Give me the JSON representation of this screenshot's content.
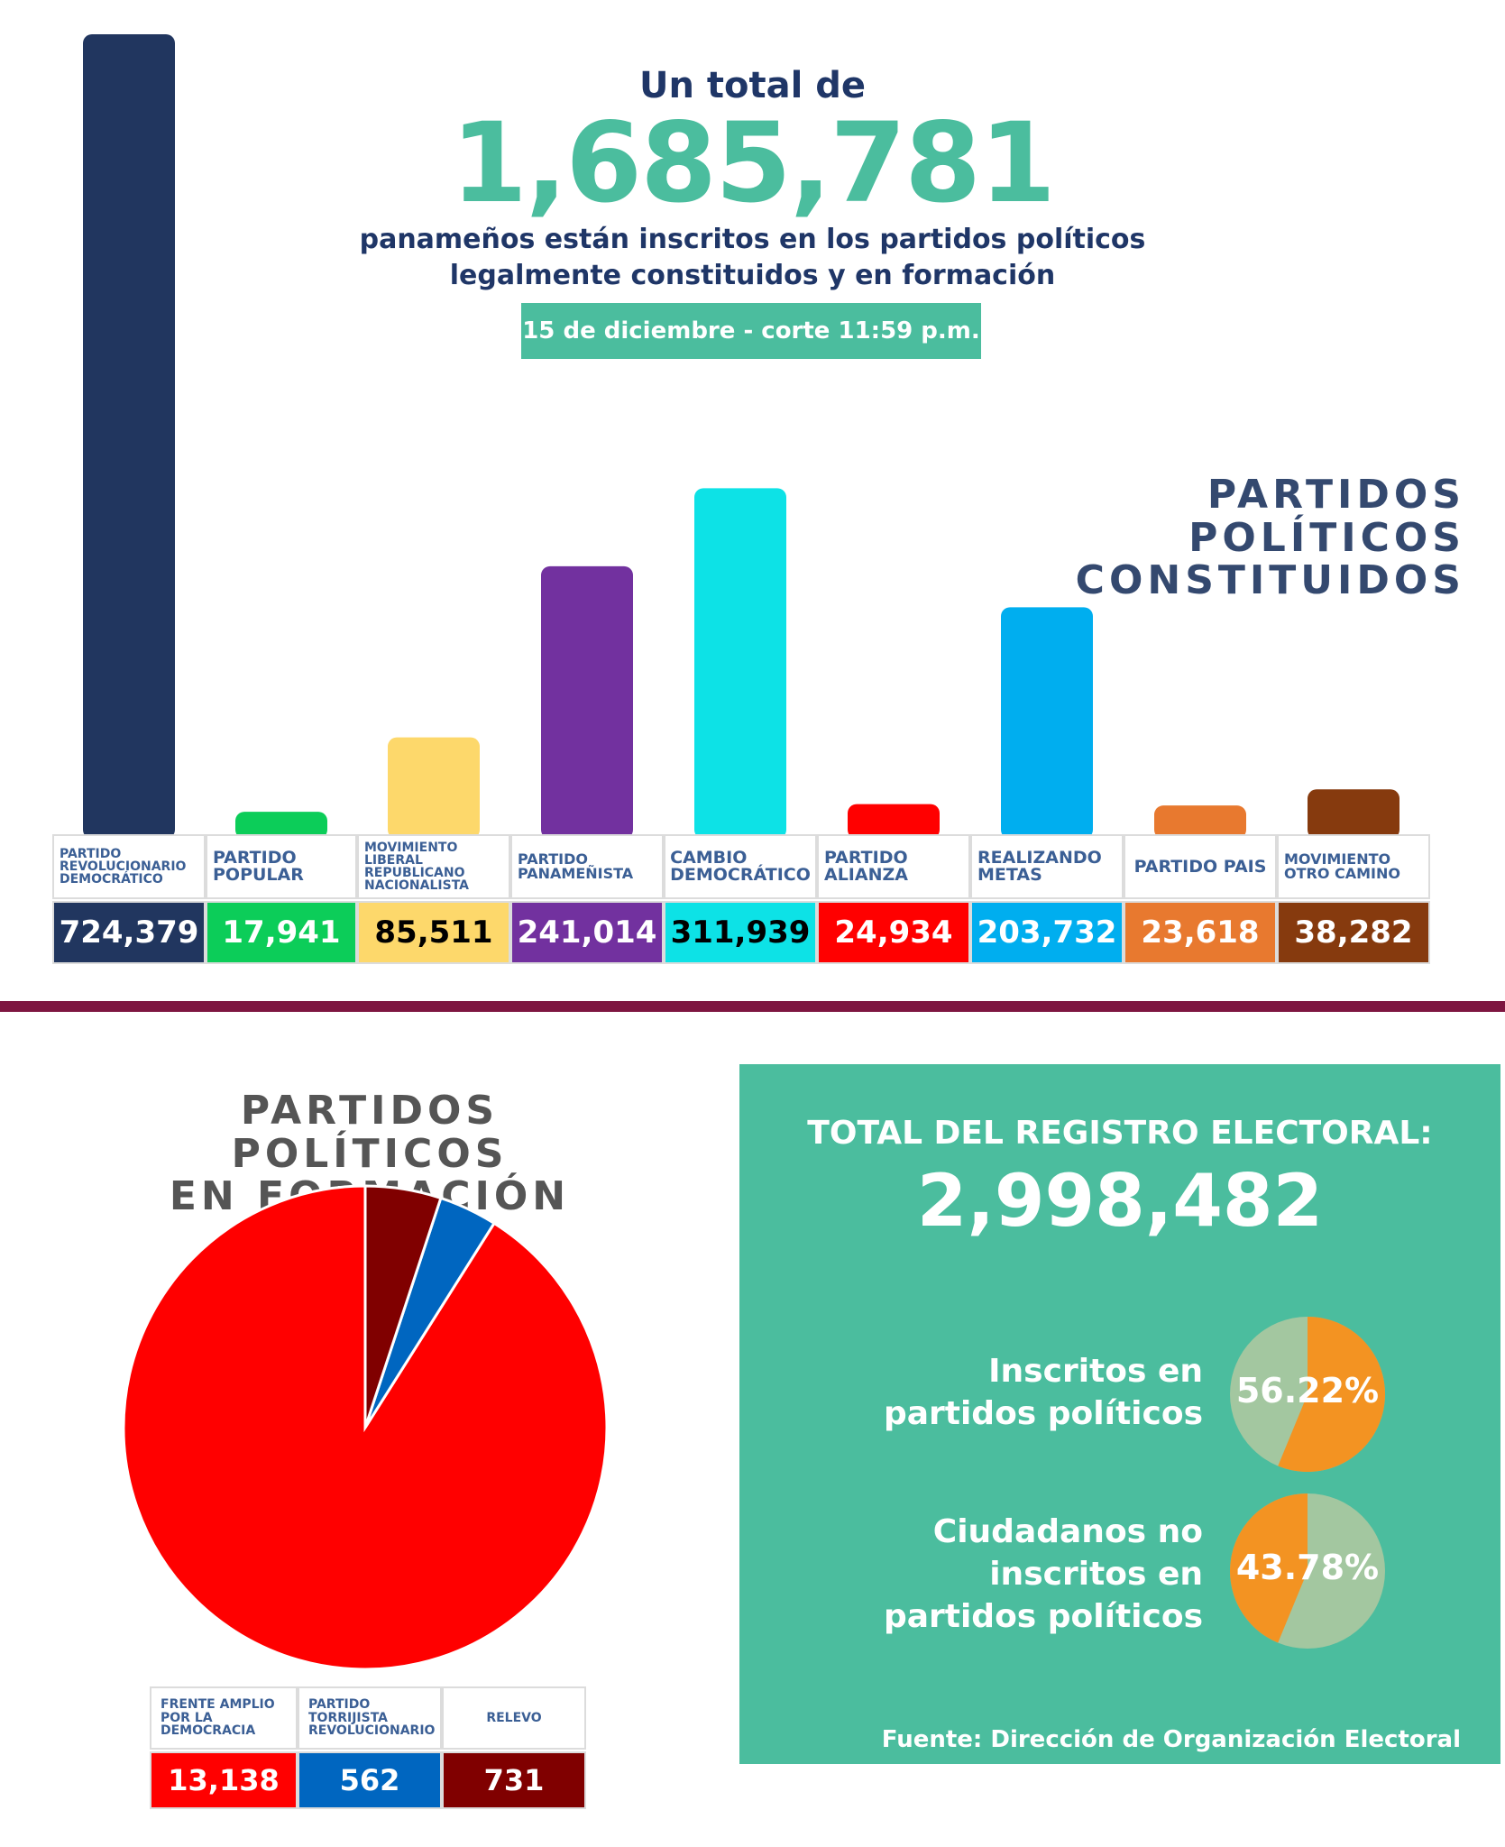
{
  "header": {
    "intro": "Un total de",
    "total": "1,685,781",
    "subtitle_line1": "panameños están inscritos en los partidos políticos",
    "subtitle_line2": "legalmente constituidos y en formación",
    "date_badge": "15 de diciembre - corte 11:59 p.m."
  },
  "constituted": {
    "title": "PARTIDOS POLÍTICOS\nCONSTITUIDOS"
  },
  "formation": {
    "title": "PARTIDOS POLÍTICOS\nEN FORMACIÓN"
  },
  "registry": {
    "title": "TOTAL DEL REGISTRO ELECTORAL:",
    "total": "2,998,482",
    "inscribed_label": "Inscritos en\npartidos políticos",
    "inscribed_pct": "56.22%",
    "inscribed_value": 56.22,
    "not_inscribed_label": "Ciudadanos no\ninscritos en\npartidos políticos",
    "not_inscribed_pct": "43.78%",
    "not_inscribed_value": 43.78,
    "colors": {
      "highlight": "#f39322",
      "rest": "#a3c7a0"
    },
    "source": "Fuente: Dirección de Organización Electoral"
  },
  "chart_data": [
    {
      "type": "bar",
      "title": "PARTIDOS POLÍTICOS CONSTITUIDOS",
      "categories": [
        "PARTIDO REVOLUCIONARIO DEMOCRÁTICO",
        "PARTIDO POPULAR",
        "MOVIMIENTO LIBERAL REPUBLICANO NACIONALISTA",
        "PARTIDO PANAMEÑISTA",
        "CAMBIO DEMOCRÁTICO",
        "PARTIDO ALIANZA",
        "REALIZANDO METAS",
        "PARTIDO PAIS",
        "MOVIMIENTO OTRO CAMINO"
      ],
      "values": [
        724379,
        17941,
        85511,
        241014,
        311939,
        24934,
        203732,
        23618,
        38282
      ],
      "value_labels": [
        "724,379",
        "17,941",
        "85,511",
        "241,014",
        "311,939",
        "24,934",
        "203,732",
        "23,618",
        "38,282"
      ],
      "colors": [
        "#21365f",
        "#0ccd59",
        "#fdd86b",
        "#72319f",
        "#0de2e6",
        "#ff0000",
        "#00aeef",
        "#e8792f",
        "#863a0e"
      ],
      "value_text_colors": [
        "#ffffff",
        "#ffffff",
        "#000000",
        "#ffffff",
        "#000000",
        "#ffffff",
        "#ffffff",
        "#ffffff",
        "#ffffff"
      ],
      "ylim": [
        0,
        724379
      ]
    },
    {
      "type": "pie",
      "title": "PARTIDOS POLÍTICOS EN FORMACIÓN",
      "categories": [
        "FRENTE AMPLIO POR LA DEMOCRACIA",
        "PARTIDO TORRIJISTA REVOLUCIONARIO",
        "RELEVO"
      ],
      "values": [
        13138,
        562,
        731
      ],
      "value_labels": [
        "13,138",
        "562",
        "731"
      ],
      "colors": [
        "#ff0000",
        "#0066c0",
        "#800000"
      ]
    }
  ]
}
